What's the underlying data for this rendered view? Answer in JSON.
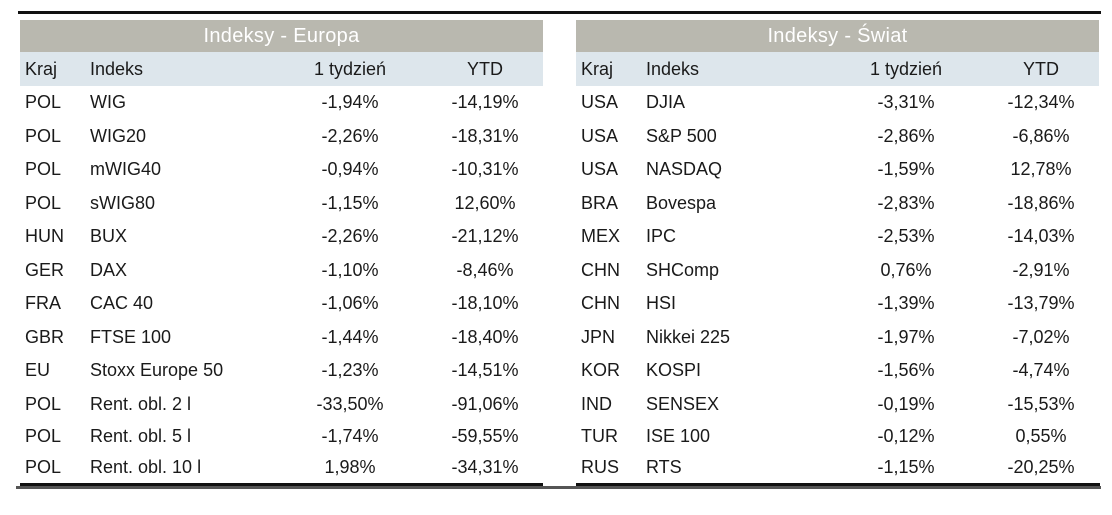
{
  "europe": {
    "title": "Indeksy - Europa",
    "headers": [
      "Kraj",
      "Indeks",
      "1 tydzień",
      "YTD"
    ],
    "rows": [
      [
        "POL",
        "WIG",
        "-1,94%",
        "-14,19%"
      ],
      [
        "POL",
        "WIG20",
        "-2,26%",
        "-18,31%"
      ],
      [
        "POL",
        "mWIG40",
        "-0,94%",
        "-10,31%"
      ],
      [
        "POL",
        "sWIG80",
        "-1,15%",
        "12,60%"
      ],
      [
        "HUN",
        "BUX",
        "-2,26%",
        "-21,12%"
      ],
      [
        "GER",
        "DAX",
        "-1,10%",
        "-8,46%"
      ],
      [
        "FRA",
        "CAC 40",
        "-1,06%",
        "-18,10%"
      ],
      [
        "GBR",
        "FTSE 100",
        "-1,44%",
        "-18,40%"
      ],
      [
        "EU",
        "Stoxx Europe 50",
        "-1,23%",
        "-14,51%"
      ],
      [
        "POL",
        "Rent. obl. 2 l",
        "-33,50%",
        "-91,06%"
      ],
      [
        "POL",
        "Rent. obl. 5 l",
        "-1,74%",
        "-59,55%"
      ],
      [
        "POL",
        "Rent. obl. 10 l",
        "1,98%",
        "-34,31%"
      ]
    ]
  },
  "world": {
    "title": "Indeksy - Świat",
    "headers": [
      "Kraj",
      "Indeks",
      "1 tydzień",
      "YTD"
    ],
    "rows": [
      [
        "USA",
        "DJIA",
        "-3,31%",
        "-12,34%"
      ],
      [
        "USA",
        "S&P 500",
        "-2,86%",
        "-6,86%"
      ],
      [
        "USA",
        "NASDAQ",
        "-1,59%",
        "12,78%"
      ],
      [
        "BRA",
        "Bovespa",
        "-2,83%",
        "-18,86%"
      ],
      [
        "MEX",
        "IPC",
        "-2,53%",
        "-14,03%"
      ],
      [
        "CHN",
        "SHComp",
        "0,76%",
        "-2,91%"
      ],
      [
        "CHN",
        "HSI",
        "-1,39%",
        "-13,79%"
      ],
      [
        "JPN",
        "Nikkei 225",
        "-1,97%",
        "-7,02%"
      ],
      [
        "KOR",
        "KOSPI",
        "-1,56%",
        "-4,74%"
      ],
      [
        "IND",
        "SENSEX",
        "-0,19%",
        "-15,53%"
      ],
      [
        "TUR",
        "ISE 100",
        "-0,12%",
        "0,55%"
      ],
      [
        "RUS",
        "RTS",
        "-1,15%",
        "-20,25%"
      ]
    ]
  },
  "colors": {
    "title_bg": "#b9b8af",
    "header_bg": "#dde6ec"
  }
}
